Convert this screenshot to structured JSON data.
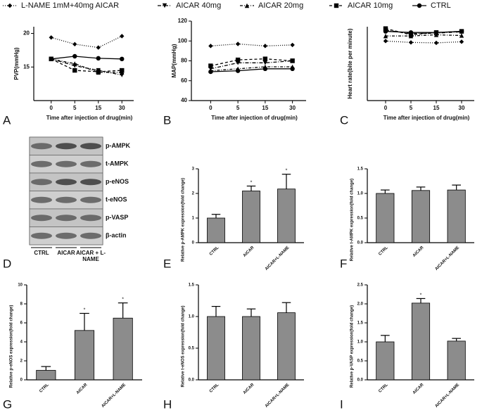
{
  "chart_data": [
    {
      "type": "line",
      "panel": "A",
      "ylabel": "PVP(mmHg)",
      "xlabel": "Time after injection of drug(min)",
      "categories": [
        "0",
        "5",
        "15",
        "30"
      ],
      "ylim": [
        10,
        21
      ],
      "yticks": [
        15,
        20
      ],
      "series": [
        {
          "name": "L-NAME 1mM+40mg AICAR",
          "color": "#000000",
          "marker": "diamond",
          "dash": "1,2",
          "values": [
            19.4,
            18.4,
            17.9,
            19.6
          ]
        },
        {
          "name": "AICAR 40mg",
          "color": "#000000",
          "marker": "tri-down",
          "dash": "5,2,1,2",
          "values": [
            16.2,
            15.2,
            14.5,
            13.8
          ]
        },
        {
          "name": "AICAR 20mg",
          "color": "#000000",
          "marker": "tri-up",
          "dash": "4,2,1,2",
          "values": [
            16.2,
            15.5,
            14.2,
            14.2
          ]
        },
        {
          "name": "AICAR 10mg",
          "color": "#000000",
          "marker": "square",
          "dash": "4,3",
          "values": [
            16.2,
            14.5,
            14.3,
            14.5
          ]
        },
        {
          "name": "CTRL",
          "color": "#000000",
          "marker": "circle",
          "dash": "none",
          "values": [
            16.2,
            16.6,
            16.3,
            16.2
          ]
        }
      ]
    },
    {
      "type": "line",
      "panel": "B",
      "ylabel": "MAP(mmHg)",
      "xlabel": "Time after injection of drug(min)",
      "categories": [
        "0",
        "5",
        "15",
        "30"
      ],
      "ylim": [
        40,
        120
      ],
      "yticks": [
        40,
        60,
        80,
        100,
        120
      ],
      "series": [
        {
          "color": "#000000",
          "marker": "diamond",
          "dash": "1,2",
          "values": [
            95,
            97,
            95,
            96
          ]
        },
        {
          "color": "#000000",
          "marker": "tri-down",
          "dash": "5,2,1,2",
          "values": [
            72,
            78,
            78,
            80
          ]
        },
        {
          "color": "#000000",
          "marker": "tri-up",
          "dash": "4,2,1,2",
          "values": [
            70,
            72,
            74,
            74
          ]
        },
        {
          "color": "#000000",
          "marker": "square",
          "dash": "4,3",
          "values": [
            75,
            81,
            82,
            80
          ]
        },
        {
          "color": "#000000",
          "marker": "circle",
          "dash": "none",
          "values": [
            69,
            70,
            72,
            72
          ]
        }
      ]
    },
    {
      "type": "line",
      "panel": "C",
      "ylabel": "Heart rate(bite per minute)",
      "xlabel": "Time after injection of drug(min)",
      "categories": [
        "0",
        "5",
        "15",
        "30"
      ],
      "ylim": [
        0,
        320
      ],
      "series": [
        {
          "color": "#000000",
          "marker": "diamond",
          "dash": "1,2",
          "values": [
            258,
            252,
            250,
            255
          ]
        },
        {
          "color": "#000000",
          "marker": "tri-down",
          "dash": "5,2,1,2",
          "values": [
            305,
            290,
            292,
            298
          ]
        },
        {
          "color": "#000000",
          "marker": "tri-up",
          "dash": "4,2,1,2",
          "values": [
            280,
            280,
            285,
            282
          ]
        },
        {
          "color": "#000000",
          "marker": "square",
          "dash": "4,3",
          "values": [
            312,
            285,
            295,
            300
          ]
        },
        {
          "color": "#000000",
          "marker": "circle",
          "dash": "none",
          "values": [
            300,
            295,
            295,
            300
          ]
        }
      ]
    },
    {
      "type": "bar",
      "panel": "E",
      "ylabel": "Relative p-AMPK expression(fold change)",
      "color": "#8c8c8c",
      "categories": [
        "CTRL",
        "AICAR",
        "AICAR+L-NAME"
      ],
      "values": [
        1.0,
        2.1,
        2.18
      ],
      "errors": [
        0.15,
        0.2,
        0.6
      ],
      "significance": [
        null,
        "*",
        "*"
      ],
      "ylim": [
        0,
        3
      ],
      "yticks": [
        0,
        1,
        2,
        3
      ]
    },
    {
      "type": "bar",
      "panel": "F",
      "ylabel": "Relative t-AMPK expression(fold change)",
      "color": "#8c8c8c",
      "categories": [
        "CTRL",
        "AICAR",
        "AICAR+L-NAME"
      ],
      "values": [
        1.0,
        1.06,
        1.07
      ],
      "errors": [
        0.07,
        0.07,
        0.1
      ],
      "significance": [
        null,
        null,
        null
      ],
      "ylim": [
        0,
        1.5
      ],
      "yticks": [
        {
          "value": 0,
          "label": "0.0"
        },
        0.5,
        {
          "value": 1,
          "label": "1.0"
        },
        1.5
      ]
    },
    {
      "type": "bar",
      "panel": "G",
      "ylabel": "Relative p-eNOS expression(fold change)",
      "color": "#8c8c8c",
      "categories": [
        "CTRL",
        "AICAR",
        "AICAR+L-NAME"
      ],
      "values": [
        1.0,
        5.2,
        6.5
      ],
      "errors": [
        0.4,
        1.8,
        1.6
      ],
      "significance": [
        null,
        "*",
        "*"
      ],
      "ylim": [
        0,
        10
      ],
      "yticks": [
        0,
        2,
        4,
        6,
        8,
        10
      ]
    },
    {
      "type": "bar",
      "panel": "H",
      "ylabel": "Relative t-eNOS expression(fold change)",
      "color": "#8c8c8c",
      "categories": [
        "CTRL",
        "AICAR",
        "AICAR+L-NAME"
      ],
      "values": [
        1.0,
        1.0,
        1.06
      ],
      "errors": [
        0.16,
        0.12,
        0.16
      ],
      "significance": [
        null,
        null,
        null
      ],
      "ylim": [
        0,
        1.5
      ],
      "yticks": [
        {
          "value": 0,
          "label": "0.0"
        },
        0.5,
        {
          "value": 1,
          "label": "1.0"
        },
        1.5
      ]
    },
    {
      "type": "bar",
      "panel": "I",
      "ylabel": "Relative p-VASP expression(fold change)",
      "color": "#8c8c8c",
      "categories": [
        "CTRL",
        "AICAR",
        "AICAR+L-NAME"
      ],
      "values": [
        1.0,
        2.02,
        1.02
      ],
      "errors": [
        0.17,
        0.12,
        0.07
      ],
      "significance": [
        null,
        "*",
        null
      ],
      "ylim": [
        0,
        2.5
      ],
      "yticks": [
        {
          "value": 0,
          "label": "0.0"
        },
        0.5,
        {
          "value": 1,
          "label": "1.0"
        },
        1.5,
        {
          "value": 2,
          "label": "2.0"
        },
        2.5
      ]
    }
  ],
  "blot": {
    "panel": "D",
    "rows": [
      "p-AMPK",
      "t-AMPK",
      "p-eNOS",
      "t-eNOS",
      "p-VASP",
      "β-actin"
    ],
    "lanes": [
      "CTRL",
      "AICAR",
      "AICAR + L-NAME"
    ]
  }
}
